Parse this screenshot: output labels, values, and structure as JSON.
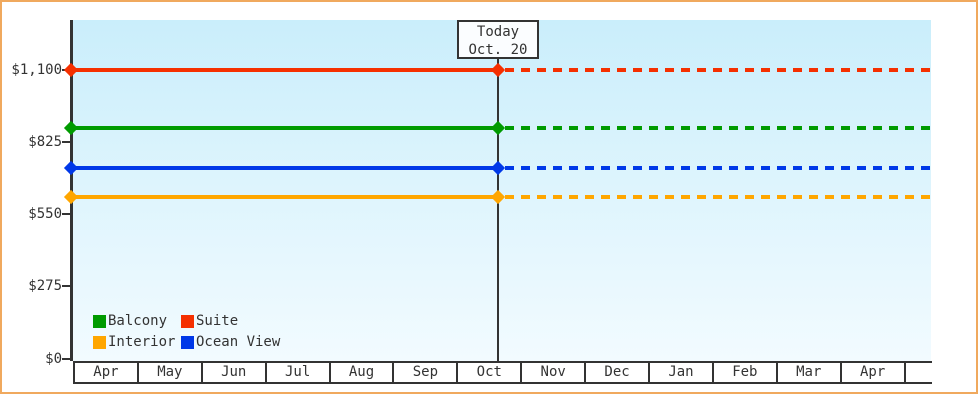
{
  "chart_data": {
    "type": "line",
    "title": "",
    "x": {
      "months": [
        "Apr",
        "May",
        "Jun",
        "Jul",
        "Aug",
        "Sep",
        "Oct",
        "Nov",
        "Dec",
        "Jan",
        "Feb",
        "Mar",
        "Apr"
      ]
    },
    "y": {
      "max": 1100,
      "ticks": [
        {
          "label": "$0",
          "value": 0
        },
        {
          "label": "$275",
          "value": 275
        },
        {
          "label": "$550",
          "value": 550
        },
        {
          "label": "$825",
          "value": 825
        },
        {
          "label": "$1,100",
          "value": 1100
        }
      ]
    },
    "series": [
      {
        "name": "Suite",
        "value": 1100,
        "color": "#f53000",
        "style_before_today": "solid",
        "style_after_today": "dashed"
      },
      {
        "name": "Balcony",
        "value": 880,
        "color": "#009b00",
        "style_before_today": "solid",
        "style_after_today": "dashed"
      },
      {
        "name": "Ocean View",
        "value": 725,
        "color": "#0038e8",
        "style_before_today": "solid",
        "style_after_today": "dashed"
      },
      {
        "name": "Interior",
        "value": 615,
        "color": "#ffa600",
        "style_before_today": "solid",
        "style_after_today": "dashed"
      }
    ],
    "today": {
      "line1": "Today",
      "line2": "Oct. 20",
      "month": "Oct",
      "month_index": 6,
      "day": 20,
      "days_in_month": 31
    },
    "legend_rows": [
      [
        "Balcony",
        "Suite"
      ],
      [
        "Interior",
        "Ocean View"
      ]
    ],
    "style": {
      "frame_border": "#f0a95e",
      "plot_gradient_top": "#caeefb",
      "plot_gradient_bottom": "#f2fbff",
      "axis_color": "#333333",
      "text_color": "#333333",
      "today_box_bg": "#fbfdff"
    }
  }
}
